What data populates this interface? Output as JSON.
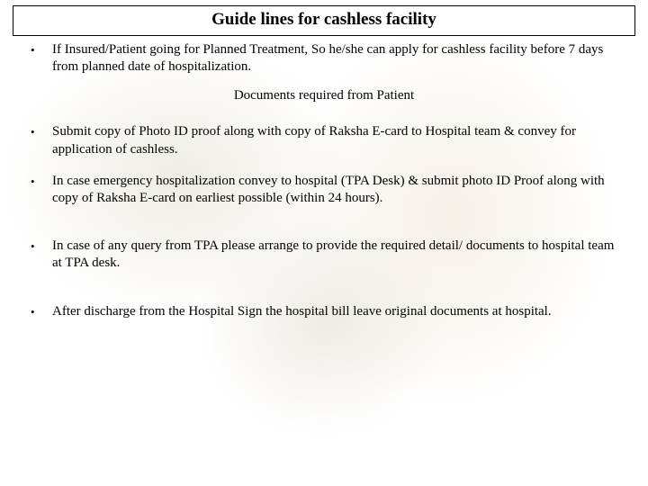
{
  "title": "Guide lines for cashless facility",
  "subheading": "Documents required from Patient",
  "bullets": {
    "b0": "If Insured/Patient going for Planned Treatment, So he/she can apply for cashless facility before 7 days from planned date of hospitalization.",
    "b1": "Submit copy of Photo ID proof along with copy of Raksha E-card to Hospital team & convey for application of cashless.",
    "b2": "In case emergency hospitalization convey to hospital (TPA Desk) & submit photo ID Proof along with copy of Raksha E-card on earliest possible (within 24 hours).",
    "b3": "In case of any query from TPA please arrange to provide the required detail/ documents to hospital team at TPA desk.",
    "b4": "After discharge from the Hospital Sign the hospital bill leave original documents at hospital."
  },
  "style": {
    "title_fontsize": 19,
    "body_fontsize": 15,
    "text_color": "#000000",
    "border_color": "#000000",
    "background_color": "#ffffff",
    "bg_tint_1": "rgba(210,200,180,0.35)",
    "bg_tint_2": "rgba(230,215,195,0.4)",
    "bg_tint_3": "rgba(200,190,170,0.3)"
  }
}
